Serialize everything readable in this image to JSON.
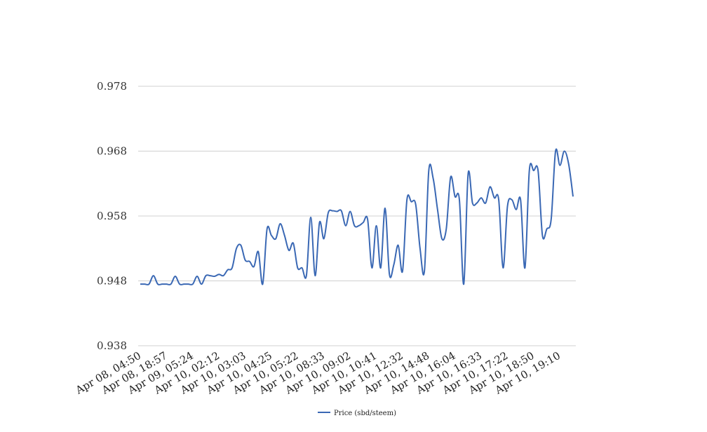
{
  "chart_data": {
    "type": "line",
    "title": "",
    "xlabel": "",
    "ylabel": "",
    "ylim": [
      0.938,
      0.978
    ],
    "yticks": [
      "0.938",
      "0.948",
      "0.958",
      "0.968",
      "0.978"
    ],
    "xticks": [
      "Apr 08, 04:50",
      "Apr 08, 18:57",
      "Apr 09, 05:24",
      "Apr 10, 02:12",
      "Apr 10, 03:03",
      "Apr 10, 04:25",
      "Apr 10, 05:22",
      "Apr 10, 08:33",
      "Apr 10, 09:02",
      "Apr 10, 10:41",
      "Apr 10, 12:32",
      "Apr 10, 14:48",
      "Apr 10, 16:04",
      "Apr 10, 16:33",
      "Apr 10, 17:22",
      "Apr 10, 18:50",
      "Apr 10, 19:10"
    ],
    "grid": true,
    "legend_position": "bottom",
    "colors": {
      "series": "#3a68b4",
      "grid": "#d0d0d0"
    },
    "series": [
      {
        "name": "Price (sbd/steem)",
        "values": [
          0.9475,
          0.9475,
          0.9475,
          0.9488,
          0.9475,
          0.9475,
          0.9475,
          0.9475,
          0.9487,
          0.9475,
          0.9475,
          0.9475,
          0.9475,
          0.9487,
          0.9475,
          0.9488,
          0.9488,
          0.9487,
          0.949,
          0.9488,
          0.9497,
          0.95,
          0.953,
          0.9535,
          0.9512,
          0.951,
          0.9502,
          0.9525,
          0.9475,
          0.956,
          0.955,
          0.9545,
          0.9568,
          0.955,
          0.9527,
          0.9538,
          0.95,
          0.95,
          0.9488,
          0.9578,
          0.9488,
          0.957,
          0.9545,
          0.9585,
          0.9588,
          0.9587,
          0.9588,
          0.9565,
          0.9587,
          0.9565,
          0.9565,
          0.957,
          0.9575,
          0.95,
          0.9565,
          0.95,
          0.9592,
          0.949,
          0.9505,
          0.9535,
          0.9495,
          0.9605,
          0.9602,
          0.9598,
          0.953,
          0.9495,
          0.965,
          0.9638,
          0.959,
          0.9545,
          0.956,
          0.964,
          0.961,
          0.9605,
          0.9475,
          0.9645,
          0.96,
          0.96,
          0.9608,
          0.96,
          0.9625,
          0.9608,
          0.9605,
          0.95,
          0.9595,
          0.9605,
          0.959,
          0.9605,
          0.95,
          0.965,
          0.965,
          0.965,
          0.955,
          0.956,
          0.9575,
          0.968,
          0.9658,
          0.968,
          0.966,
          0.961
        ]
      }
    ]
  }
}
